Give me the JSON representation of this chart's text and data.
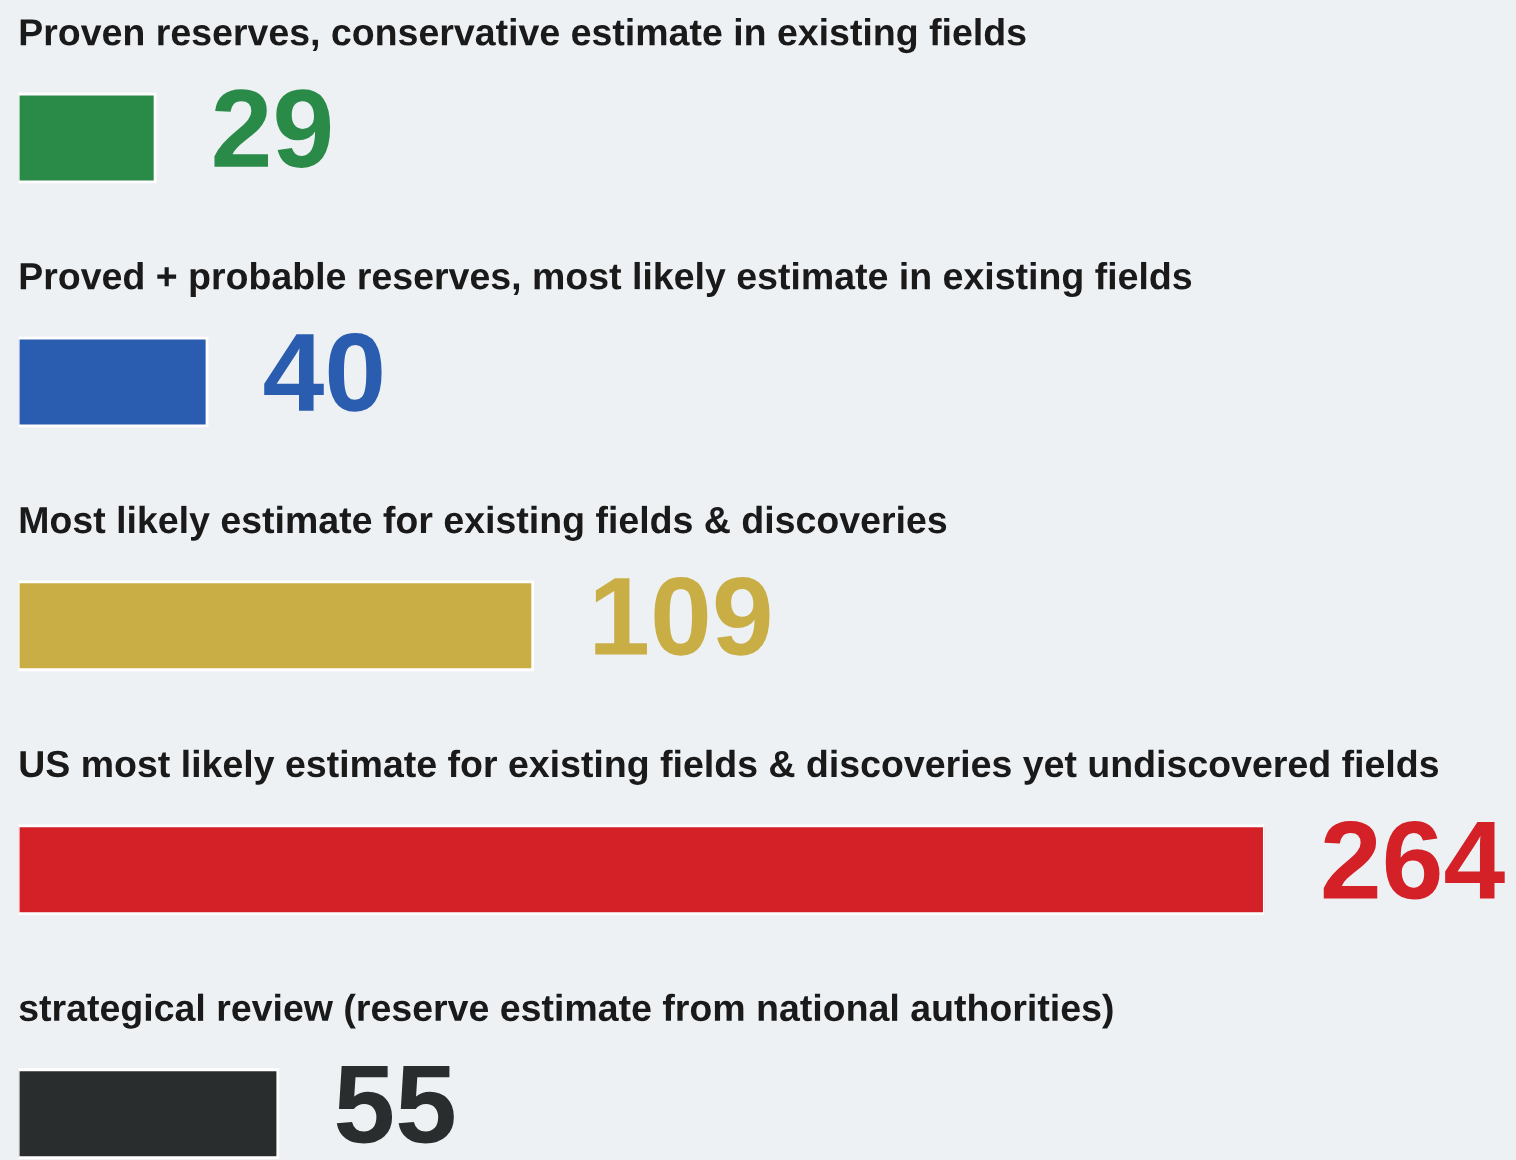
{
  "chart_data": {
    "type": "bar",
    "orientation": "horizontal",
    "categories": [
      "Proven reserves, conservative estimate in existing fields",
      "Proved + probable reserves, most likely estimate in existing fields",
      "Most likely estimate for existing fields & discoveries",
      "US most likely estimate for existing fields & discoveries yet undiscovered fields",
      "strategical review (reserve estimate from national authorities)"
    ],
    "values": [
      29,
      40,
      109,
      264,
      55
    ],
    "colors": [
      "#2a8a48",
      "#2a5db0",
      "#c9ae45",
      "#d42027",
      "#2a2d2e"
    ],
    "data_labels": true
  }
}
